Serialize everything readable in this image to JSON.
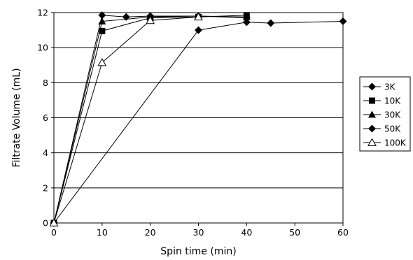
{
  "chart_data": {
    "type": "line",
    "xlabel": "Spin time (min)",
    "ylabel": "Filtrate Volume (mL)",
    "xlim": [
      0,
      60
    ],
    "ylim": [
      0,
      12
    ],
    "xticks": [
      0,
      10,
      20,
      30,
      40,
      50,
      60
    ],
    "yticks": [
      0,
      2,
      4,
      6,
      8,
      10,
      12
    ],
    "grid": "horizontal",
    "legend_position": "right",
    "series": [
      {
        "name": "3K",
        "marker": "diamond",
        "points": [
          [
            0,
            0
          ],
          [
            30,
            11.0
          ],
          [
            40,
            11.45
          ],
          [
            45,
            11.4
          ],
          [
            60,
            11.5
          ]
        ]
      },
      {
        "name": "10K",
        "marker": "square",
        "points": [
          [
            0,
            0
          ],
          [
            10,
            10.95
          ],
          [
            20,
            11.7
          ],
          [
            30,
            11.75
          ],
          [
            40,
            11.85
          ]
        ]
      },
      {
        "name": "30K",
        "marker": "triangle",
        "points": [
          [
            0,
            0
          ],
          [
            10,
            11.5
          ],
          [
            20,
            11.75
          ],
          [
            30,
            11.8
          ],
          [
            40,
            11.75
          ]
        ]
      },
      {
        "name": "50K",
        "marker": "diamond",
        "points": [
          [
            0,
            0
          ],
          [
            10,
            11.85
          ],
          [
            15,
            11.75
          ],
          [
            20,
            11.8
          ],
          [
            30,
            11.8
          ],
          [
            40,
            11.7
          ]
        ]
      },
      {
        "name": "100K",
        "marker": "triangle-open",
        "points": [
          [
            0,
            0
          ],
          [
            10,
            9.15
          ],
          [
            20,
            11.55
          ],
          [
            30,
            11.75
          ]
        ]
      }
    ]
  }
}
